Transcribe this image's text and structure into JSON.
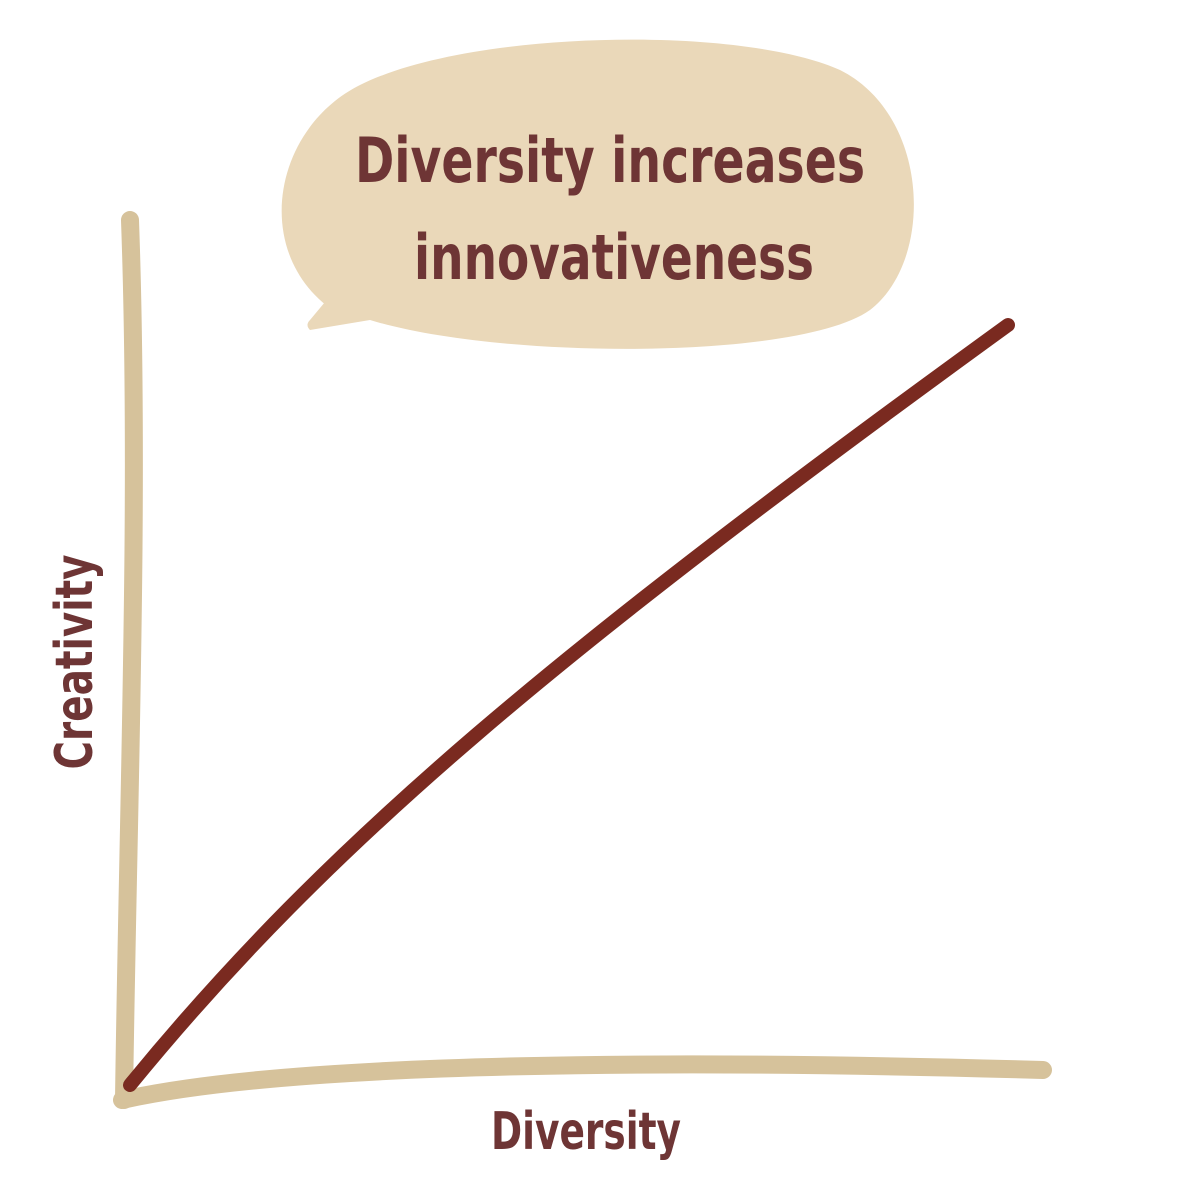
{
  "bubble": {
    "lines": [
      "Diversity increases",
      "innovativeness"
    ]
  },
  "axes": {
    "x_label": "Diversity",
    "y_label": "Creativity"
  }
}
